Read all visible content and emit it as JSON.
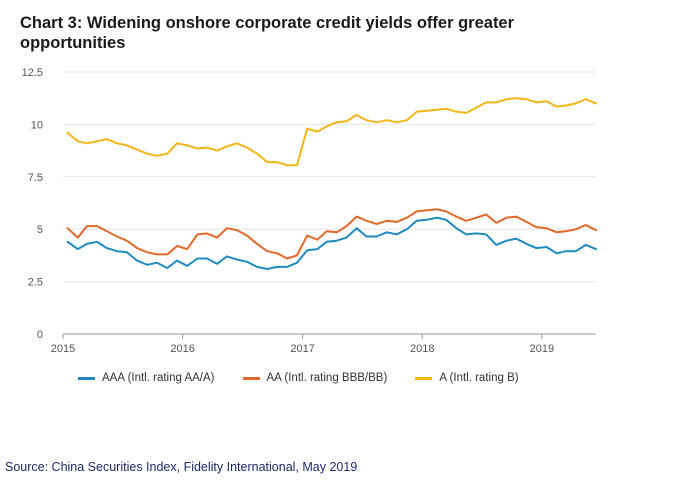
{
  "chart_data": {
    "type": "line",
    "title": "Chart 3: Widening onshore corporate credit yields offer greater opportunities",
    "xlabel": "",
    "ylabel": "",
    "ylim": [
      0,
      12.5
    ],
    "yticks": [
      "0",
      "2.5",
      "5",
      "7.5",
      "10",
      "12.5"
    ],
    "xticks": [
      "2015",
      "2016",
      "2017",
      "2018",
      "2019"
    ],
    "grid": true,
    "legend_position": "bottom",
    "series": [
      {
        "name": "AAA (Intl. rating AA/A)",
        "color": "#1f8ac0",
        "x": [
          "2015-01",
          "2015-02",
          "2015-03",
          "2015-04",
          "2015-05",
          "2015-06",
          "2015-07",
          "2015-08",
          "2015-09",
          "2015-10",
          "2015-11",
          "2015-12",
          "2016-01",
          "2016-02",
          "2016-03",
          "2016-04",
          "2016-05",
          "2016-06",
          "2016-07",
          "2016-08",
          "2016-09",
          "2016-10",
          "2016-11",
          "2016-12",
          "2017-01",
          "2017-02",
          "2017-03",
          "2017-04",
          "2017-05",
          "2017-06",
          "2017-07",
          "2017-08",
          "2017-09",
          "2017-10",
          "2017-11",
          "2017-12",
          "2018-01",
          "2018-02",
          "2018-03",
          "2018-04",
          "2018-05",
          "2018-06",
          "2018-07",
          "2018-08",
          "2018-09",
          "2018-10",
          "2018-11",
          "2018-12",
          "2019-01",
          "2019-02",
          "2019-03",
          "2019-04",
          "2019-05",
          "2019-06"
        ],
        "values": [
          4.4,
          4.05,
          4.3,
          4.4,
          4.1,
          3.95,
          3.9,
          3.5,
          3.3,
          3.4,
          3.15,
          3.5,
          3.25,
          3.6,
          3.6,
          3.35,
          3.7,
          3.55,
          3.45,
          3.2,
          3.1,
          3.2,
          3.2,
          3.4,
          4.0,
          4.05,
          4.4,
          4.45,
          4.6,
          5.05,
          4.65,
          4.65,
          4.85,
          4.75,
          5.0,
          5.4,
          5.45,
          5.55,
          5.45,
          5.05,
          4.75,
          4.8,
          4.75,
          4.25,
          4.45,
          4.55,
          4.3,
          4.1,
          4.15,
          3.85,
          3.95,
          3.95,
          4.25,
          4.05
        ]
      },
      {
        "name": "AA (Intl. rating BBB/BB)",
        "color": "#e0692a",
        "x": [
          "2015-01",
          "2015-02",
          "2015-03",
          "2015-04",
          "2015-05",
          "2015-06",
          "2015-07",
          "2015-08",
          "2015-09",
          "2015-10",
          "2015-11",
          "2015-12",
          "2016-01",
          "2016-02",
          "2016-03",
          "2016-04",
          "2016-05",
          "2016-06",
          "2016-07",
          "2016-08",
          "2016-09",
          "2016-10",
          "2016-11",
          "2016-12",
          "2017-01",
          "2017-02",
          "2017-03",
          "2017-04",
          "2017-05",
          "2017-06",
          "2017-07",
          "2017-08",
          "2017-09",
          "2017-10",
          "2017-11",
          "2017-12",
          "2018-01",
          "2018-02",
          "2018-03",
          "2018-04",
          "2018-05",
          "2018-06",
          "2018-07",
          "2018-08",
          "2018-09",
          "2018-10",
          "2018-11",
          "2018-12",
          "2019-01",
          "2019-02",
          "2019-03",
          "2019-04",
          "2019-05",
          "2019-06"
        ],
        "values": [
          5.05,
          4.6,
          5.15,
          5.15,
          4.9,
          4.65,
          4.45,
          4.1,
          3.9,
          3.8,
          3.8,
          4.2,
          4.05,
          4.75,
          4.8,
          4.6,
          5.05,
          4.95,
          4.7,
          4.3,
          3.95,
          3.85,
          3.6,
          3.75,
          4.7,
          4.5,
          4.9,
          4.85,
          5.15,
          5.6,
          5.4,
          5.25,
          5.4,
          5.35,
          5.55,
          5.85,
          5.9,
          5.95,
          5.85,
          5.6,
          5.4,
          5.55,
          5.7,
          5.3,
          5.55,
          5.6,
          5.35,
          5.1,
          5.05,
          4.85,
          4.9,
          5.0,
          5.2,
          4.95
        ]
      },
      {
        "name": "A (Intl. rating B)",
        "color": "#f4b516",
        "x": [
          "2015-01",
          "2015-02",
          "2015-03",
          "2015-04",
          "2015-05",
          "2015-06",
          "2015-07",
          "2015-08",
          "2015-09",
          "2015-10",
          "2015-11",
          "2015-12",
          "2016-01",
          "2016-02",
          "2016-03",
          "2016-04",
          "2016-05",
          "2016-06",
          "2016-07",
          "2016-08",
          "2016-09",
          "2016-10",
          "2016-11",
          "2016-12",
          "2017-01",
          "2017-02",
          "2017-03",
          "2017-04",
          "2017-05",
          "2017-06",
          "2017-07",
          "2017-08",
          "2017-09",
          "2017-10",
          "2017-11",
          "2017-12",
          "2018-01",
          "2018-02",
          "2018-03",
          "2018-04",
          "2018-05",
          "2018-06",
          "2018-07",
          "2018-08",
          "2018-09",
          "2018-10",
          "2018-11",
          "2018-12",
          "2019-01",
          "2019-02",
          "2019-03",
          "2019-04",
          "2019-05",
          "2019-06"
        ],
        "values": [
          9.6,
          9.2,
          9.1,
          9.2,
          9.3,
          9.1,
          9.0,
          8.8,
          8.6,
          8.5,
          8.6,
          9.1,
          9.0,
          8.85,
          8.9,
          8.75,
          8.95,
          9.1,
          8.9,
          8.6,
          8.2,
          8.2,
          8.05,
          8.05,
          9.8,
          9.65,
          9.9,
          10.1,
          10.15,
          10.45,
          10.2,
          10.1,
          10.2,
          10.1,
          10.2,
          10.6,
          10.65,
          10.7,
          10.75,
          10.6,
          10.55,
          10.8,
          11.05,
          11.05,
          11.2,
          11.25,
          11.2,
          11.05,
          11.1,
          10.85,
          10.9,
          11.0,
          11.2,
          11.0
        ]
      }
    ]
  },
  "source": "Source: China Securities Index, Fidelity International, May 2019"
}
